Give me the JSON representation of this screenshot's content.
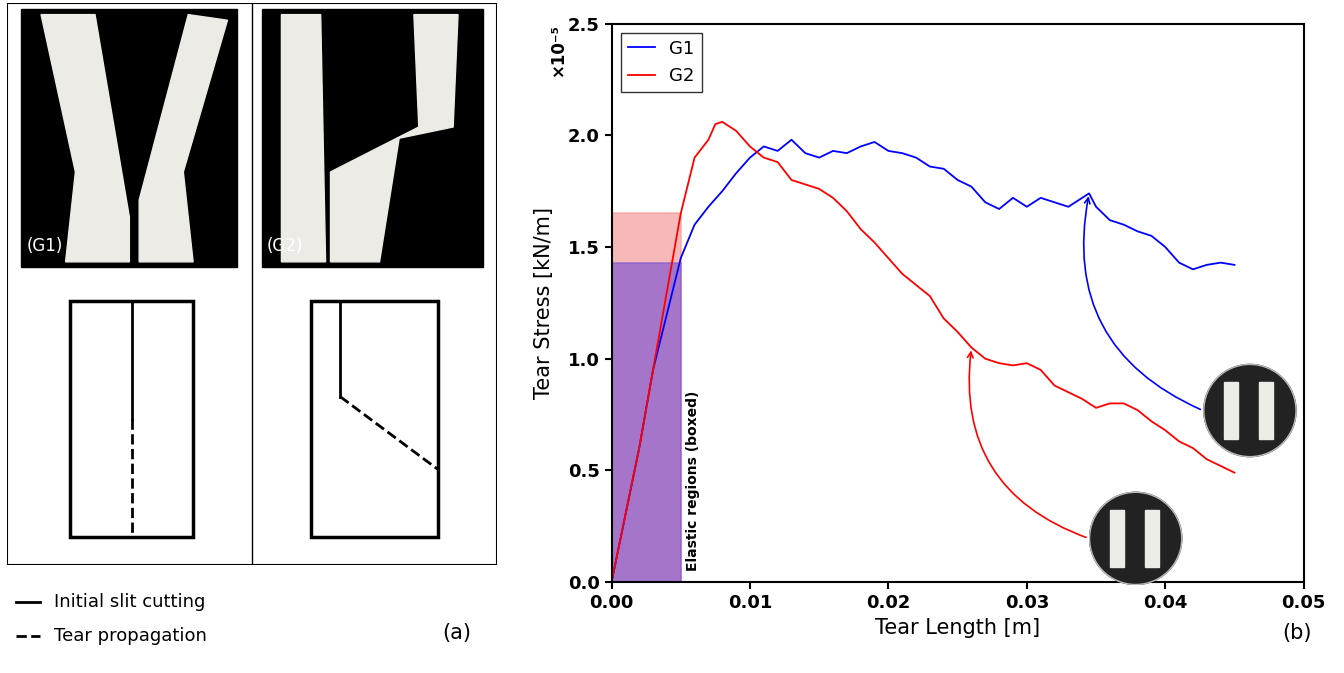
{
  "panel_a": {
    "panel_label": "(a)",
    "photo_labels": [
      "(G1)",
      "(G2)"
    ],
    "key": [
      {
        "label": "Initial slit cutting",
        "line_style": "solid"
      },
      {
        "label": "Tear propagation",
        "line_style": "dashed"
      }
    ]
  },
  "chart_data": {
    "type": "line",
    "panel_label": "(b)",
    "x_label": "Tear Length [m]",
    "y_label": "Tear Stress [kN/m]",
    "y_multiplier": "×10⁻⁵",
    "xlim": [
      0,
      0.05
    ],
    "ylim": [
      0,
      2.5
    ],
    "xticks": [
      {
        "value": 0,
        "label": "0.00"
      },
      {
        "value": 0.01,
        "label": "0.01"
      },
      {
        "value": 0.02,
        "label": "0.02"
      },
      {
        "value": 0.03,
        "label": "0.03"
      },
      {
        "value": 0.04,
        "label": "0.04"
      },
      {
        "value": 0.05,
        "label": "0.05"
      }
    ],
    "yticks": [
      {
        "value": 0,
        "label": "0.0"
      },
      {
        "value": 0.5,
        "label": "0.5"
      },
      {
        "value": 1,
        "label": "1.0"
      },
      {
        "value": 1.5,
        "label": "1.5"
      },
      {
        "value": 2,
        "label": "2.0"
      },
      {
        "value": 2.5,
        "label": "2.5"
      }
    ],
    "legend": "upper left",
    "annotation": "Elastic regions (boxed)",
    "elastic_boxes": [
      {
        "color": "#f4a0a0",
        "x": [
          0,
          0.005
        ],
        "y": [
          0,
          1.65
        ]
      },
      {
        "color": "#8a5fd0",
        "x": [
          0,
          0.005
        ],
        "y": [
          0,
          1.43
        ]
      }
    ],
    "insets": [
      {
        "series": "G1",
        "x": 0.0345
      },
      {
        "series": "G2",
        "x": 0.026
      }
    ],
    "series": [
      {
        "name": "G1",
        "color": "#0000ff",
        "x": [
          0,
          0.001,
          0.002,
          0.003,
          0.004,
          0.005,
          0.006,
          0.007,
          0.008,
          0.009,
          0.01,
          0.011,
          0.012,
          0.013,
          0.014,
          0.015,
          0.016,
          0.017,
          0.018,
          0.019,
          0.02,
          0.021,
          0.022,
          0.023,
          0.024,
          0.025,
          0.026,
          0.027,
          0.028,
          0.029,
          0.03,
          0.031,
          0.032,
          0.033,
          0.034,
          0.0345,
          0.035,
          0.036,
          0.037,
          0.038,
          0.039,
          0.04,
          0.041,
          0.042,
          0.043,
          0.044,
          0.045
        ],
        "values": [
          0,
          0.3,
          0.6,
          0.95,
          1.2,
          1.45,
          1.6,
          1.68,
          1.75,
          1.83,
          1.9,
          1.95,
          1.93,
          1.98,
          1.92,
          1.9,
          1.93,
          1.92,
          1.95,
          1.97,
          1.93,
          1.92,
          1.9,
          1.86,
          1.85,
          1.8,
          1.77,
          1.7,
          1.67,
          1.72,
          1.68,
          1.72,
          1.7,
          1.68,
          1.72,
          1.74,
          1.68,
          1.62,
          1.6,
          1.57,
          1.55,
          1.5,
          1.43,
          1.4,
          1.42,
          1.43,
          1.42
        ]
      },
      {
        "name": "G2",
        "color": "#ff0000",
        "x": [
          0,
          0.001,
          0.002,
          0.003,
          0.004,
          0.005,
          0.006,
          0.007,
          0.0075,
          0.008,
          0.009,
          0.01,
          0.011,
          0.012,
          0.013,
          0.014,
          0.015,
          0.016,
          0.017,
          0.018,
          0.019,
          0.02,
          0.021,
          0.022,
          0.023,
          0.024,
          0.025,
          0.026,
          0.027,
          0.028,
          0.029,
          0.03,
          0.031,
          0.032,
          0.033,
          0.034,
          0.035,
          0.036,
          0.037,
          0.038,
          0.039,
          0.04,
          0.041,
          0.042,
          0.043,
          0.044,
          0.045
        ],
        "values": [
          0,
          0.3,
          0.6,
          0.95,
          1.3,
          1.65,
          1.9,
          1.98,
          2.05,
          2.06,
          2.02,
          1.95,
          1.9,
          1.88,
          1.8,
          1.78,
          1.76,
          1.72,
          1.66,
          1.58,
          1.52,
          1.45,
          1.38,
          1.33,
          1.28,
          1.18,
          1.12,
          1.05,
          1.0,
          0.98,
          0.97,
          0.98,
          0.95,
          0.88,
          0.85,
          0.82,
          0.78,
          0.8,
          0.8,
          0.77,
          0.72,
          0.68,
          0.63,
          0.6,
          0.55,
          0.52,
          0.49
        ]
      }
    ]
  }
}
